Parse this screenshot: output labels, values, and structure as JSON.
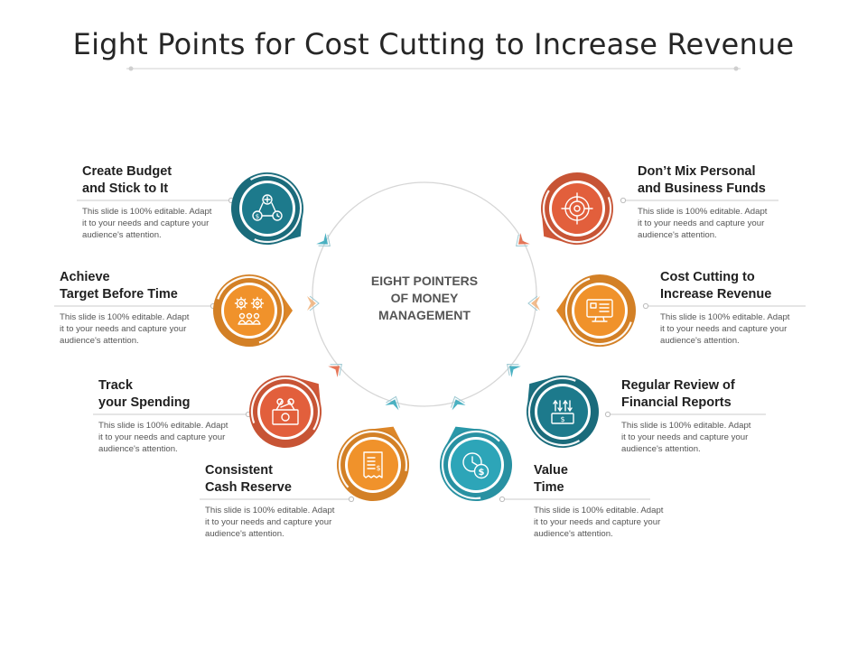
{
  "title": "Eight Points for Cost Cutting to Increase Revenue",
  "center": {
    "lines": [
      "EIGHT POINTERS",
      "OF MONEY",
      "MANAGEMENT"
    ]
  },
  "description_lines": [
    "This slide is 100% editable. Adapt",
    "it to your needs and capture your",
    "audience's attention."
  ],
  "colors": {
    "teal": "#1D7A8C",
    "orange": "#F0922B",
    "red": "#E25F3C",
    "sky": "#2DA5B8",
    "text": "#1f1f1f",
    "muted": "#555555",
    "ring": "#d6d6d6"
  },
  "items": [
    {
      "id": "create-budget",
      "heading": [
        "Create Budget",
        "and Stick to It"
      ],
      "color": "#1D7A8C",
      "icon": "budget-icon"
    },
    {
      "id": "achieve-target",
      "heading": [
        "Achieve",
        "Target Before Time"
      ],
      "color": "#F0922B",
      "icon": "gears-team-icon"
    },
    {
      "id": "track-spending",
      "heading": [
        "Track",
        "your Spending"
      ],
      "color": "#E25F3C",
      "icon": "money-bill-icon"
    },
    {
      "id": "cash-reserve",
      "heading": [
        "Consistent",
        "Cash Reserve"
      ],
      "color": "#F0922B",
      "icon": "receipt-icon"
    },
    {
      "id": "value-time",
      "heading": [
        "Value",
        "Time"
      ],
      "color": "#2DA5B8",
      "icon": "clock-dollar-icon"
    },
    {
      "id": "regular-review",
      "heading": [
        "Regular Review of",
        "Financial Reports"
      ],
      "color": "#1D7A8C",
      "icon": "cash-flow-icon"
    },
    {
      "id": "cost-cutting",
      "heading": [
        "Cost Cutting to",
        "Increase Revenue"
      ],
      "color": "#F0922B",
      "icon": "monitor-report-icon"
    },
    {
      "id": "dont-mix",
      "heading": [
        "Don’t Mix Personal",
        "and Business Funds"
      ],
      "color": "#E25F3C",
      "icon": "target-icon"
    }
  ]
}
